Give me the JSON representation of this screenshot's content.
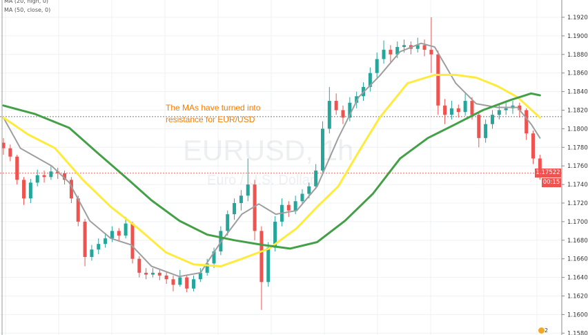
{
  "legend": [
    "MA (20, high, 0)",
    "MA (50, close, 0)"
  ],
  "watermark": {
    "symbol": "EURUSD, 1h",
    "description": "Euro / U.S. Dollar"
  },
  "annotation": [
    "The MAs have turned into",
    "resistance for EUR/USD"
  ],
  "price_label": {
    "price": "1.17522",
    "countdown": "00:15"
  },
  "badge": "2",
  "colors": {
    "up": "#26a69a",
    "down": "#ef5350",
    "ma_gray": "#9e9e9e",
    "ma_yellow": "#ffeb3b",
    "ma_green": "#43a047",
    "annotation": "#f57c00"
  },
  "chart_data": {
    "type": "candlestick",
    "ylim": [
      1.158,
      1.194
    ],
    "y_ticks": [
      "1.15800",
      "1.16000",
      "1.16200",
      "1.16400",
      "1.16600",
      "1.16800",
      "1.17000",
      "1.17200",
      "1.17400",
      "1.17600",
      "1.17800",
      "1.18000",
      "1.18200",
      "1.18400",
      "1.18600",
      "1.18800",
      "1.19000",
      "1.19200"
    ],
    "grid": true,
    "resistance_level": 1.1813,
    "last_price": 1.17522,
    "ohlc": [
      [
        1.1785,
        1.179,
        1.1772,
        1.1779
      ],
      [
        1.1779,
        1.1783,
        1.1765,
        1.177
      ],
      [
        1.177,
        1.1772,
        1.174,
        1.1745
      ],
      [
        1.1745,
        1.1748,
        1.1718,
        1.1725
      ],
      [
        1.1725,
        1.1746,
        1.172,
        1.1742
      ],
      [
        1.1742,
        1.1756,
        1.1738,
        1.175
      ],
      [
        1.175,
        1.1755,
        1.1742,
        1.1748
      ],
      [
        1.1748,
        1.176,
        1.1745,
        1.1754
      ],
      [
        1.1754,
        1.1758,
        1.1746,
        1.1752
      ],
      [
        1.1752,
        1.1755,
        1.174,
        1.1745
      ],
      [
        1.1745,
        1.1748,
        1.172,
        1.1725
      ],
      [
        1.1725,
        1.1728,
        1.1695,
        1.17
      ],
      [
        1.17,
        1.1703,
        1.1652,
        1.1662
      ],
      [
        1.1662,
        1.1675,
        1.1658,
        1.167
      ],
      [
        1.167,
        1.1682,
        1.1665,
        1.1676
      ],
      [
        1.1676,
        1.1688,
        1.1672,
        1.1682
      ],
      [
        1.1682,
        1.1695,
        1.1678,
        1.169
      ],
      [
        1.169,
        1.1693,
        1.168,
        1.1685
      ],
      [
        1.1685,
        1.1705,
        1.1682,
        1.1698
      ],
      [
        1.1698,
        1.17,
        1.1655,
        1.166
      ],
      [
        1.166,
        1.1663,
        1.164,
        1.1645
      ],
      [
        1.1645,
        1.165,
        1.1638,
        1.1643
      ],
      [
        1.1643,
        1.165,
        1.164,
        1.1645
      ],
      [
        1.1645,
        1.1648,
        1.1637,
        1.1642
      ],
      [
        1.1642,
        1.1646,
        1.1633,
        1.1638
      ],
      [
        1.1638,
        1.1642,
        1.1625,
        1.1632
      ],
      [
        1.1632,
        1.1648,
        1.163,
        1.164
      ],
      [
        1.164,
        1.1643,
        1.1624,
        1.1628
      ],
      [
        1.1628,
        1.1642,
        1.1625,
        1.1638
      ],
      [
        1.1638,
        1.165,
        1.1635,
        1.1645
      ],
      [
        1.1645,
        1.166,
        1.1642,
        1.1655
      ],
      [
        1.1655,
        1.1672,
        1.165,
        1.1668
      ],
      [
        1.1668,
        1.1695,
        1.1664,
        1.169
      ],
      [
        1.169,
        1.1712,
        1.1685,
        1.1708
      ],
      [
        1.1708,
        1.1725,
        1.1702,
        1.172
      ],
      [
        1.172,
        1.1734,
        1.1712,
        1.1728
      ],
      [
        1.1728,
        1.1768,
        1.1722,
        1.174
      ],
      [
        1.174,
        1.1745,
        1.168,
        1.169
      ],
      [
        1.169,
        1.1695,
        1.1605,
        1.1635
      ],
      [
        1.1635,
        1.1678,
        1.163,
        1.1672
      ],
      [
        1.1672,
        1.1706,
        1.1668,
        1.17
      ],
      [
        1.17,
        1.1725,
        1.1695,
        1.1718
      ],
      [
        1.1718,
        1.1722,
        1.1705,
        1.1712
      ],
      [
        1.1712,
        1.1728,
        1.1708,
        1.1722
      ],
      [
        1.1722,
        1.1735,
        1.1718,
        1.173
      ],
      [
        1.173,
        1.1742,
        1.1725,
        1.1738
      ],
      [
        1.1738,
        1.1762,
        1.1735,
        1.1755
      ],
      [
        1.1755,
        1.1808,
        1.175,
        1.18
      ],
      [
        1.18,
        1.1845,
        1.1795,
        1.183
      ],
      [
        1.183,
        1.1838,
        1.1815,
        1.182
      ],
      [
        1.182,
        1.1825,
        1.1805,
        1.1812
      ],
      [
        1.1812,
        1.1834,
        1.1808,
        1.1828
      ],
      [
        1.1828,
        1.184,
        1.1822,
        1.1835
      ],
      [
        1.1835,
        1.185,
        1.183,
        1.1845
      ],
      [
        1.1845,
        1.1866,
        1.184,
        1.186
      ],
      [
        1.186,
        1.1882,
        1.1855,
        1.1875
      ],
      [
        1.1875,
        1.1895,
        1.187,
        1.1885
      ],
      [
        1.1885,
        1.189,
        1.1872,
        1.188
      ],
      [
        1.188,
        1.1894,
        1.1876,
        1.1888
      ],
      [
        1.1888,
        1.1896,
        1.1882,
        1.189
      ],
      [
        1.189,
        1.1894,
        1.188,
        1.1886
      ],
      [
        1.1886,
        1.1898,
        1.1882,
        1.189
      ],
      [
        1.189,
        1.1896,
        1.1878,
        1.1885
      ],
      [
        1.1885,
        1.192,
        1.186,
        1.188
      ],
      [
        1.188,
        1.1884,
        1.1815,
        1.1825
      ],
      [
        1.1825,
        1.1832,
        1.1805,
        1.1815
      ],
      [
        1.1815,
        1.183,
        1.181,
        1.1822
      ],
      [
        1.1822,
        1.1826,
        1.1812,
        1.1818
      ],
      [
        1.1818,
        1.1838,
        1.1814,
        1.183
      ],
      [
        1.183,
        1.1834,
        1.181,
        1.1815
      ],
      [
        1.1815,
        1.1818,
        1.178,
        1.179
      ],
      [
        1.179,
        1.181,
        1.1785,
        1.1805
      ],
      [
        1.1805,
        1.182,
        1.18,
        1.1815
      ],
      [
        1.1815,
        1.1826,
        1.181,
        1.182
      ],
      [
        1.182,
        1.1828,
        1.1815,
        1.1822
      ],
      [
        1.1822,
        1.183,
        1.1816,
        1.1825
      ],
      [
        1.1825,
        1.1828,
        1.1812,
        1.182
      ],
      [
        1.182,
        1.1822,
        1.1788,
        1.1795
      ],
      [
        1.1795,
        1.1798,
        1.1762,
        1.1768
      ],
      [
        1.1768,
        1.1772,
        1.1745,
        1.17522
      ]
    ],
    "moving_averages": [
      {
        "color": "ma_gray",
        "points": [
          [
            0,
            1.1812
          ],
          [
            2.5,
            1.1779
          ],
          [
            7.1,
            1.176
          ],
          [
            9.7,
            1.1742
          ],
          [
            12.7,
            1.1701
          ],
          [
            15.8,
            1.1682
          ],
          [
            18.8,
            1.1675
          ],
          [
            21.8,
            1.1652
          ],
          [
            25.9,
            1.1641
          ],
          [
            29,
            1.1645
          ],
          [
            32,
            1.1678
          ],
          [
            35.1,
            1.1708
          ],
          [
            37.6,
            1.1719
          ],
          [
            40.1,
            1.1708
          ],
          [
            43.2,
            1.1712
          ],
          [
            46.2,
            1.1738
          ],
          [
            49.3,
            1.179
          ],
          [
            52.3,
            1.1834
          ],
          [
            55.4,
            1.1857
          ],
          [
            58.4,
            1.1883
          ],
          [
            61.5,
            1.1892
          ],
          [
            63.5,
            1.1888
          ],
          [
            66.6,
            1.1849
          ],
          [
            69.6,
            1.1827
          ],
          [
            72.7,
            1.1823
          ],
          [
            75.7,
            1.1823
          ],
          [
            77.7,
            1.1805
          ],
          [
            79,
            1.179
          ]
        ]
      },
      {
        "color": "ma_yellow",
        "points": [
          [
            0,
            1.1812
          ],
          [
            3.6,
            1.1794
          ],
          [
            7.6,
            1.1779
          ],
          [
            11.7,
            1.1745
          ],
          [
            15.8,
            1.1716
          ],
          [
            19.8,
            1.1693
          ],
          [
            23.9,
            1.1667
          ],
          [
            28,
            1.1654
          ],
          [
            32,
            1.1652
          ],
          [
            35.1,
            1.166
          ],
          [
            39.1,
            1.1671
          ],
          [
            43.2,
            1.1693
          ],
          [
            46.2,
            1.1716
          ],
          [
            49.3,
            1.1738
          ],
          [
            52.3,
            1.1775
          ],
          [
            55.4,
            1.1812
          ],
          [
            59.5,
            1.1849
          ],
          [
            63.5,
            1.1858
          ],
          [
            66.6,
            1.1858
          ],
          [
            69.6,
            1.1855
          ],
          [
            72.7,
            1.1846
          ],
          [
            75.7,
            1.1834
          ],
          [
            79,
            1.1812
          ]
        ]
      },
      {
        "color": "ma_green",
        "points": [
          [
            0,
            1.1825
          ],
          [
            4.6,
            1.1816
          ],
          [
            9.7,
            1.1801
          ],
          [
            13.7,
            1.1775
          ],
          [
            17.8,
            1.1749
          ],
          [
            21.8,
            1.1723
          ],
          [
            25.9,
            1.1701
          ],
          [
            30,
            1.1686
          ],
          [
            34,
            1.168
          ],
          [
            38.1,
            1.1675
          ],
          [
            42.2,
            1.1671
          ],
          [
            46.2,
            1.1678
          ],
          [
            50.3,
            1.1701
          ],
          [
            54.4,
            1.173
          ],
          [
            58.4,
            1.1768
          ],
          [
            62.5,
            1.179
          ],
          [
            66.6,
            1.1805
          ],
          [
            70.6,
            1.182
          ],
          [
            74.7,
            1.1831
          ],
          [
            77.7,
            1.1838
          ],
          [
            79,
            1.1836
          ]
        ]
      }
    ]
  }
}
